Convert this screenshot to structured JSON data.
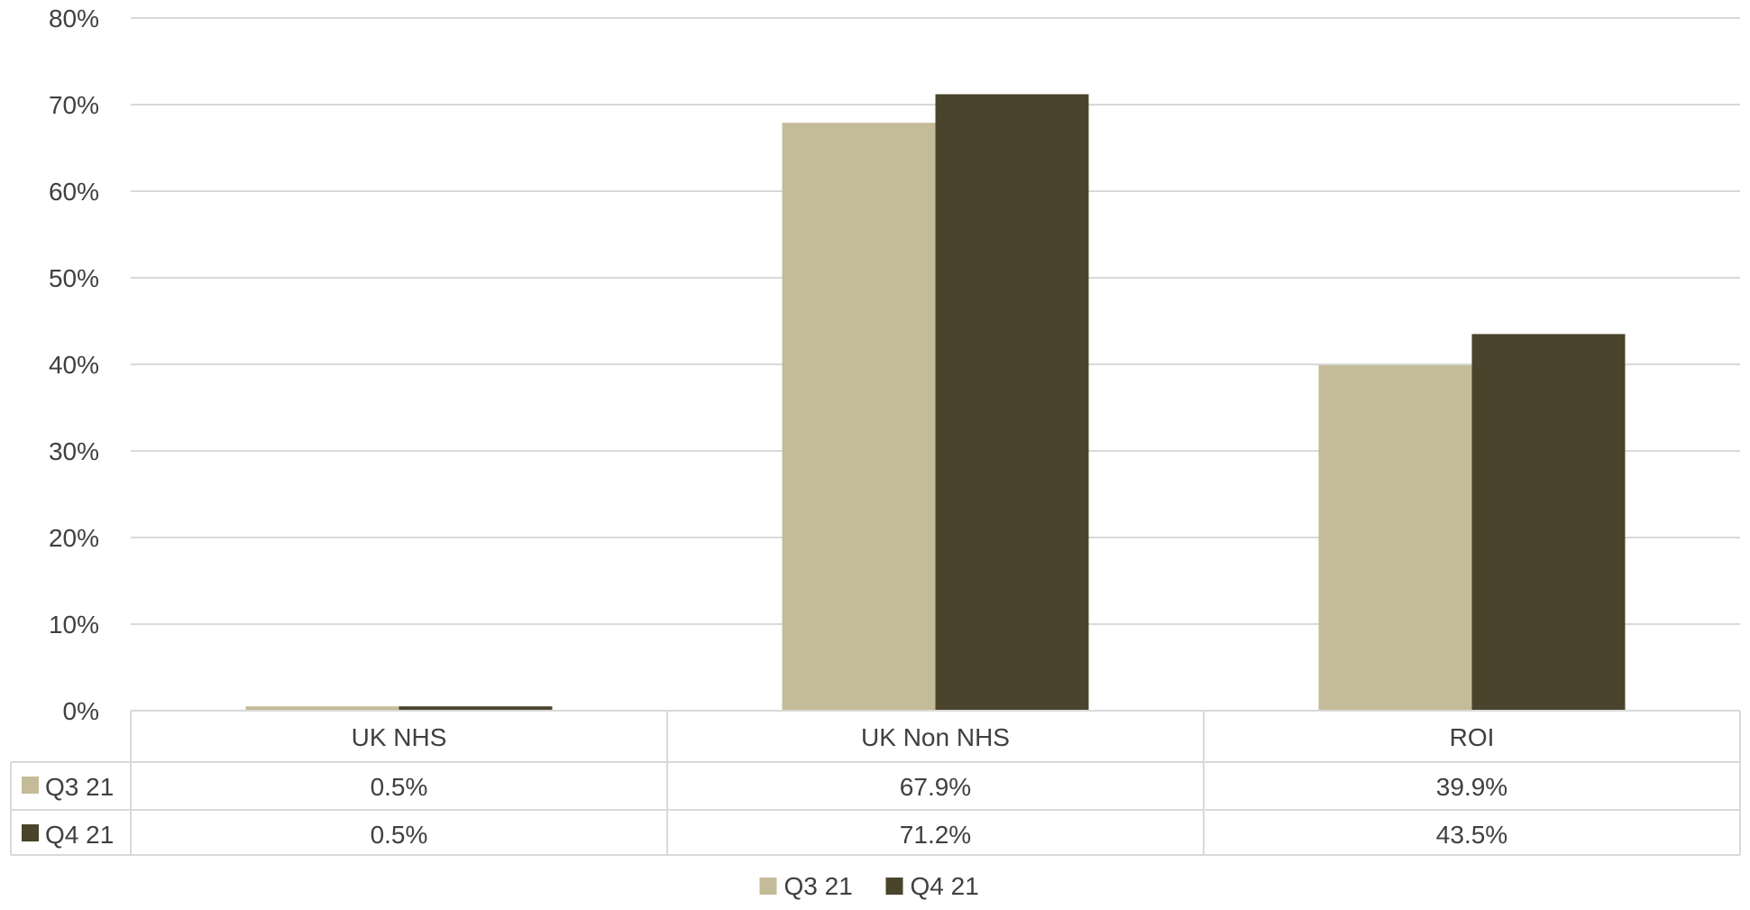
{
  "chart_data": {
    "type": "bar",
    "categories": [
      "UK NHS",
      "UK Non NHS",
      "ROI"
    ],
    "series": [
      {
        "name": "Q3 21",
        "values": [
          0.5,
          67.9,
          39.9
        ],
        "labels": [
          "0.5%",
          "67.9%",
          "39.9%"
        ],
        "color": "#c4bc98"
      },
      {
        "name": "Q4 21",
        "values": [
          0.5,
          71.2,
          43.5
        ],
        "labels": [
          "0.5%",
          "71.2%",
          "43.5%"
        ],
        "color": "#4a442c"
      }
    ],
    "ylim": [
      0,
      80
    ],
    "yticks": [
      0,
      10,
      20,
      30,
      40,
      50,
      60,
      70,
      80
    ],
    "ytick_labels": [
      "0%",
      "10%",
      "20%",
      "30%",
      "40%",
      "50%",
      "60%",
      "70%",
      "80%"
    ],
    "title": "",
    "xlabel": "",
    "ylabel": "",
    "grid": true,
    "data_table": true,
    "legend_position": "bottom"
  }
}
